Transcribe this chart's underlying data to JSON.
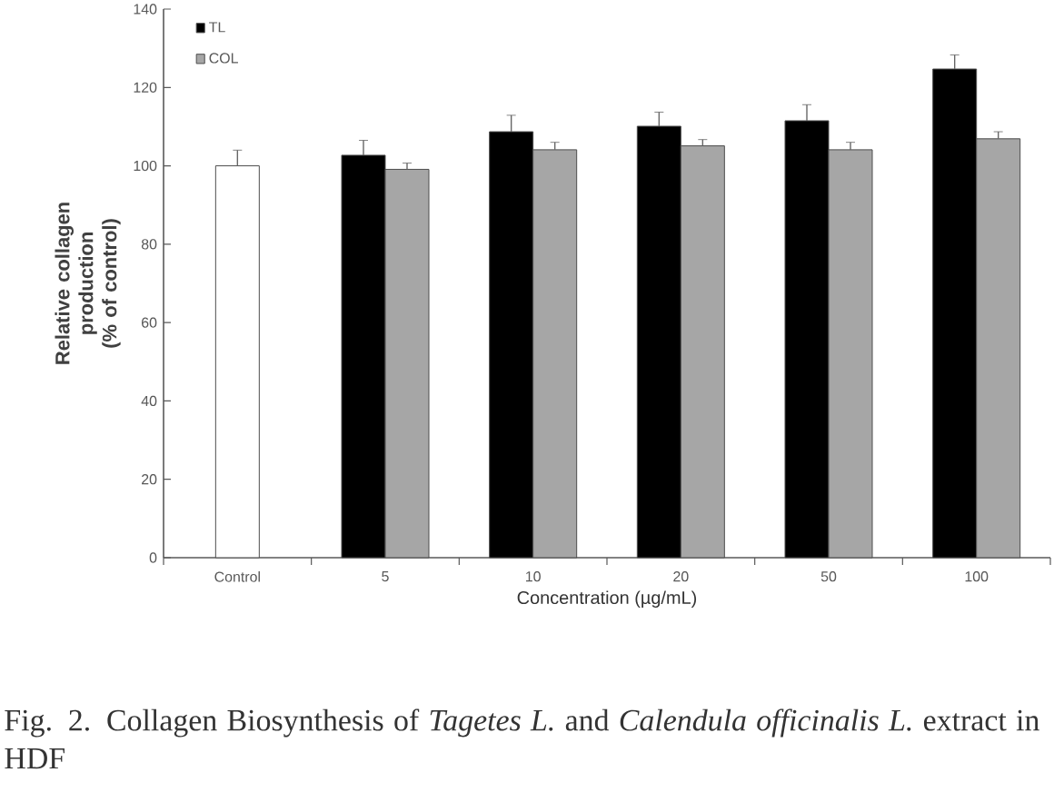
{
  "chart_data": {
    "type": "bar",
    "xlabel": "Concentration (µg/mL)",
    "ylabel": "Relative collagen production (% of control)",
    "categories": [
      "Control",
      "5",
      "10",
      "20",
      "50",
      "100"
    ],
    "series": [
      {
        "color": "#ffffff",
        "values": [
          100,
          null,
          null,
          null,
          null,
          null
        ],
        "errors": [
          4,
          null,
          null,
          null,
          null,
          null
        ]
      },
      {
        "name": "TL",
        "color": "#000000",
        "values": [
          null,
          102.7,
          108.7,
          110.1,
          111.5,
          124.7
        ],
        "errors": [
          null,
          3.8,
          4.2,
          3.6,
          4.1,
          3.6
        ]
      },
      {
        "name": "COL",
        "color": "#a6a6a6",
        "values": [
          null,
          99.1,
          104.1,
          105.1,
          104.1,
          106.9
        ],
        "errors": [
          null,
          1.6,
          1.9,
          1.6,
          1.9,
          1.8
        ]
      }
    ],
    "ylim": [
      0,
      140
    ],
    "yticks": [
      0,
      20,
      40,
      60,
      80,
      100,
      120,
      140
    ],
    "grid": false,
    "legend": "top left",
    "annotations": [
      "Fig. 2. Collagen Biosynthesis of *Tagetes L.* and *Calendula officinalis L.* extract in HDF"
    ]
  }
}
